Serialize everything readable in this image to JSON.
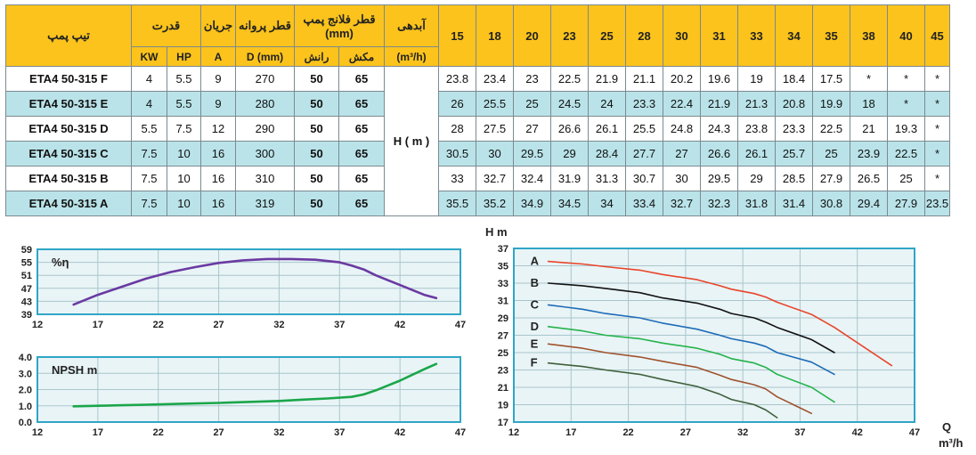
{
  "table": {
    "headers": {
      "model": "تیپ پمپ",
      "power": "قدرت",
      "current": "جریان",
      "impeller": "قطر پروانه",
      "flange": "قطر فلانج پمپ (mm)",
      "flow": "آبدهی",
      "kw": "KW",
      "hp": "HP",
      "amp": "A",
      "dmm": "D (mm)",
      "discharge": "رانش",
      "suction": "مکش",
      "flow_unit": "(m³/h)"
    },
    "flows": [
      "15",
      "18",
      "20",
      "23",
      "25",
      "28",
      "30",
      "31",
      "33",
      "34",
      "35",
      "38",
      "40",
      "45"
    ],
    "head_label": "H ( m )",
    "rows": [
      {
        "model": "ETA4 50-315 F",
        "kw": "4",
        "hp": "5.5",
        "a": "9",
        "d": "270",
        "discharge": "50",
        "suction": "65",
        "h": [
          "23.8",
          "23.4",
          "23",
          "22.5",
          "21.9",
          "21.1",
          "20.2",
          "19.6",
          "19",
          "18.4",
          "17.5",
          "*",
          "*",
          "*"
        ]
      },
      {
        "model": "ETA4 50-315 E",
        "kw": "4",
        "hp": "5.5",
        "a": "9",
        "d": "280",
        "discharge": "50",
        "suction": "65",
        "h": [
          "26",
          "25.5",
          "25",
          "24.5",
          "24",
          "23.3",
          "22.4",
          "21.9",
          "21.3",
          "20.8",
          "19.9",
          "18",
          "*",
          "*"
        ]
      },
      {
        "model": "ETA4 50-315 D",
        "kw": "5.5",
        "hp": "7.5",
        "a": "12",
        "d": "290",
        "discharge": "50",
        "suction": "65",
        "h": [
          "28",
          "27.5",
          "27",
          "26.6",
          "26.1",
          "25.5",
          "24.8",
          "24.3",
          "23.8",
          "23.3",
          "22.5",
          "21",
          "19.3",
          "*"
        ]
      },
      {
        "model": "ETA4 50-315 C",
        "kw": "7.5",
        "hp": "10",
        "a": "16",
        "d": "300",
        "discharge": "50",
        "suction": "65",
        "h": [
          "30.5",
          "30",
          "29.5",
          "29",
          "28.4",
          "27.7",
          "27",
          "26.6",
          "26.1",
          "25.7",
          "25",
          "23.9",
          "22.5",
          "*"
        ]
      },
      {
        "model": "ETA4 50-315 B",
        "kw": "7.5",
        "hp": "10",
        "a": "16",
        "d": "310",
        "discharge": "50",
        "suction": "65",
        "h": [
          "33",
          "32.7",
          "32.4",
          "31.9",
          "31.3",
          "30.7",
          "30",
          "29.5",
          "29",
          "28.5",
          "27.9",
          "26.5",
          "25",
          "*"
        ]
      },
      {
        "model": "ETA4 50-315 A",
        "kw": "7.5",
        "hp": "10",
        "a": "16",
        "d": "319",
        "discharge": "50",
        "suction": "65",
        "h": [
          "35.5",
          "35.2",
          "34.9",
          "34.5",
          "34",
          "33.4",
          "32.7",
          "32.3",
          "31.8",
          "31.4",
          "30.8",
          "29.4",
          "27.9",
          "23.5"
        ]
      }
    ]
  },
  "chart_data": [
    {
      "type": "line",
      "ylabel": "%η",
      "xlim": [
        12,
        47
      ],
      "ylim": [
        39,
        59
      ],
      "xticks": [
        "12",
        "17",
        "22",
        "27",
        "32",
        "37",
        "42",
        "47"
      ],
      "yticks": [
        "59",
        "55",
        "51",
        "47",
        "43",
        "39"
      ],
      "grid": true,
      "color": "#6a3aa2",
      "series": [
        {
          "x": [
            15,
            17,
            19,
            21,
            23,
            25,
            27,
            29,
            31,
            33,
            35,
            37,
            38,
            39,
            40,
            41,
            42,
            43,
            44,
            45
          ],
          "y": [
            42,
            45,
            47.5,
            50,
            52,
            53.5,
            54.8,
            55.6,
            56,
            56,
            55.8,
            55,
            54,
            52.8,
            51,
            49.5,
            48,
            46.5,
            45,
            44
          ]
        }
      ]
    },
    {
      "type": "line",
      "ylabel": "NPSH m",
      "xlim": [
        12,
        47
      ],
      "ylim": [
        0,
        4
      ],
      "xticks": [
        "12",
        "17",
        "22",
        "27",
        "32",
        "37",
        "42",
        "47"
      ],
      "yticks": [
        "4.0",
        "3.0",
        "2.0",
        "1.0",
        "0.0"
      ],
      "grid": true,
      "color": "#1aa64a",
      "series": [
        {
          "x": [
            15,
            18,
            21,
            24,
            27,
            30,
            32,
            34,
            36,
            38,
            39,
            40,
            41,
            42,
            43,
            44,
            45
          ],
          "y": [
            0.97,
            1.02,
            1.07,
            1.13,
            1.18,
            1.25,
            1.3,
            1.38,
            1.45,
            1.55,
            1.7,
            1.95,
            2.25,
            2.55,
            2.9,
            3.25,
            3.58
          ]
        }
      ]
    },
    {
      "type": "line",
      "title": "H m",
      "xlabel": "Q",
      "xunit": "m³/h",
      "xlim": [
        12,
        47
      ],
      "ylim": [
        17,
        37
      ],
      "xticks": [
        "12",
        "17",
        "22",
        "27",
        "32",
        "37",
        "42",
        "47"
      ],
      "yticks": [
        "37",
        "35",
        "33",
        "31",
        "29",
        "27",
        "25",
        "23",
        "21",
        "19",
        "17"
      ],
      "grid": true,
      "series": [
        {
          "name": "A",
          "color": "#e8452a",
          "x": [
            15,
            18,
            20,
            23,
            25,
            28,
            30,
            31,
            33,
            34,
            35,
            38,
            40,
            45
          ],
          "y": [
            35.5,
            35.2,
            34.9,
            34.5,
            34,
            33.4,
            32.7,
            32.3,
            31.8,
            31.4,
            30.8,
            29.4,
            27.9,
            23.5
          ]
        },
        {
          "name": "B",
          "color": "#111111",
          "x": [
            15,
            18,
            20,
            23,
            25,
            28,
            30,
            31,
            33,
            34,
            35,
            38,
            40
          ],
          "y": [
            33,
            32.7,
            32.4,
            31.9,
            31.3,
            30.7,
            30,
            29.5,
            29,
            28.5,
            27.9,
            26.5,
            25
          ]
        },
        {
          "name": "C",
          "color": "#1d6bb8",
          "x": [
            15,
            18,
            20,
            23,
            25,
            28,
            30,
            31,
            33,
            34,
            35,
            38,
            40
          ],
          "y": [
            30.5,
            30,
            29.5,
            29,
            28.4,
            27.7,
            27,
            26.6,
            26.1,
            25.7,
            25,
            23.9,
            22.5
          ]
        },
        {
          "name": "D",
          "color": "#23b34a",
          "x": [
            15,
            18,
            20,
            23,
            25,
            28,
            30,
            31,
            33,
            34,
            35,
            38,
            40
          ],
          "y": [
            28,
            27.5,
            27,
            26.6,
            26.1,
            25.5,
            24.8,
            24.3,
            23.8,
            23.3,
            22.5,
            21,
            19.3
          ]
        },
        {
          "name": "E",
          "color": "#a0522d",
          "x": [
            15,
            18,
            20,
            23,
            25,
            28,
            30,
            31,
            33,
            34,
            35,
            38
          ],
          "y": [
            26,
            25.5,
            25,
            24.5,
            24,
            23.3,
            22.4,
            21.9,
            21.3,
            20.8,
            19.9,
            18
          ]
        },
        {
          "name": "F",
          "color": "#3e5f3a",
          "x": [
            15,
            18,
            20,
            23,
            25,
            28,
            30,
            31,
            33,
            34,
            35
          ],
          "y": [
            23.8,
            23.4,
            23,
            22.5,
            21.9,
            21.1,
            20.2,
            19.6,
            19,
            18.4,
            17.5
          ]
        }
      ]
    }
  ]
}
